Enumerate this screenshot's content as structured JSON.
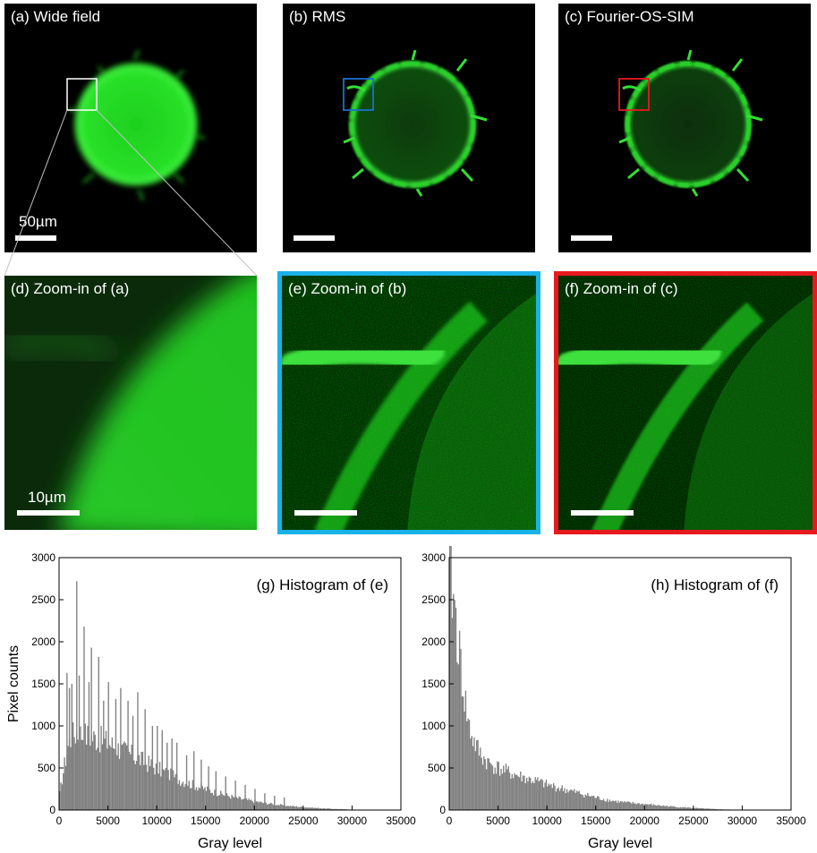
{
  "panels": {
    "a": {
      "label": "(a) Wide field",
      "scale_label": "50µm"
    },
    "b": {
      "label": "(b) RMS"
    },
    "c": {
      "label": "(c) Fourier-OS-SIM"
    },
    "d": {
      "label": "(d) Zoom-in of (a)",
      "scale_label": "10µm"
    },
    "e": {
      "label": "(e) Zoom-in of (b)"
    },
    "f": {
      "label": "(f) Zoom-in of (c)"
    }
  },
  "colors": {
    "fluorescence": "#22dd22",
    "frame_e": "#19b2e8",
    "frame_f": "#e8191e",
    "roi_a": "#ffffff",
    "roi_b": "#1a6fd0",
    "roi_c": "#e8191e",
    "bars": "#808080"
  },
  "chart_data": [
    {
      "type": "bar",
      "title": "(g) Histogram of (e)",
      "xlabel": "Gray level",
      "ylabel": "Pixel counts",
      "xlim": [
        0,
        35000
      ],
      "ylim": [
        0,
        3000
      ],
      "xticks": [
        "0",
        "5000",
        "10000",
        "15000",
        "20000",
        "25000",
        "30000",
        "35000"
      ],
      "yticks": [
        "0",
        "500",
        "1000",
        "1500",
        "2000",
        "2500",
        "3000"
      ],
      "bin_width": 125,
      "envelope_x": [
        0,
        500,
        1000,
        1500,
        2000,
        3000,
        4000,
        5000,
        6000,
        7000,
        8000,
        9000,
        10000,
        11000,
        12000,
        13000,
        14000,
        15000,
        16000,
        17000,
        18000,
        19000,
        20000,
        21000,
        22000,
        23000,
        24000,
        25000,
        26000,
        27000,
        28000,
        29000,
        30000,
        31000,
        32000,
        33000
      ],
      "envelope_y": [
        150,
        500,
        800,
        900,
        920,
        880,
        850,
        800,
        740,
        680,
        620,
        560,
        500,
        440,
        380,
        330,
        290,
        250,
        210,
        180,
        150,
        125,
        105,
        85,
        70,
        55,
        45,
        35,
        27,
        20,
        14,
        10,
        6,
        4,
        2,
        0
      ],
      "spikes_x": [
        750,
        1000,
        1250,
        1750,
        2000,
        2500,
        3000,
        3250,
        4000,
        4500,
        5000,
        5750,
        6250,
        7000,
        7500,
        8000,
        8750,
        9500,
        10000,
        10500,
        11000,
        11500,
        12000,
        13000,
        13750,
        14500,
        15250,
        16000,
        17000,
        18000,
        19000,
        20000,
        21000,
        22000,
        23000
      ],
      "spikes_y": [
        1630,
        1450,
        1500,
        2720,
        1600,
        2180,
        1520,
        1930,
        1820,
        1300,
        1520,
        1320,
        1450,
        1300,
        1120,
        1400,
        1200,
        1000,
        1000,
        950,
        800,
        850,
        800,
        650,
        700,
        600,
        520,
        460,
        400,
        350,
        300,
        250,
        200,
        170,
        150
      ]
    },
    {
      "type": "bar",
      "title": "(h) Histogram of (f)",
      "xlabel": "Gray level",
      "ylabel": "",
      "xlim": [
        0,
        35000
      ],
      "ylim": [
        0,
        3000
      ],
      "xticks": [
        "0",
        "5000",
        "10000",
        "15000",
        "20000",
        "25000",
        "30000",
        "35000"
      ],
      "yticks": [
        "0",
        "500",
        "1000",
        "1500",
        "2000",
        "2500",
        "3000"
      ],
      "bin_width": 125,
      "envelope_x": [
        0,
        125,
        250,
        500,
        750,
        1000,
        1250,
        1500,
        1750,
        2000,
        2500,
        3000,
        3500,
        4000,
        5000,
        6000,
        7000,
        8000,
        9000,
        10000,
        11000,
        12000,
        13000,
        14000,
        15000,
        16000,
        17000,
        18000,
        19000,
        20000,
        21000,
        22000,
        23000,
        24000,
        25000,
        26000,
        27000,
        28000,
        29000,
        30000,
        31000
      ],
      "envelope_y": [
        3000,
        2900,
        2700,
        2450,
        2200,
        1900,
        1650,
        1400,
        1200,
        1000,
        820,
        700,
        620,
        560,
        500,
        450,
        410,
        370,
        340,
        300,
        270,
        240,
        210,
        180,
        150,
        125,
        105,
        90,
        80,
        70,
        60,
        50,
        40,
        32,
        25,
        18,
        12,
        8,
        5,
        3,
        0
      ]
    }
  ]
}
